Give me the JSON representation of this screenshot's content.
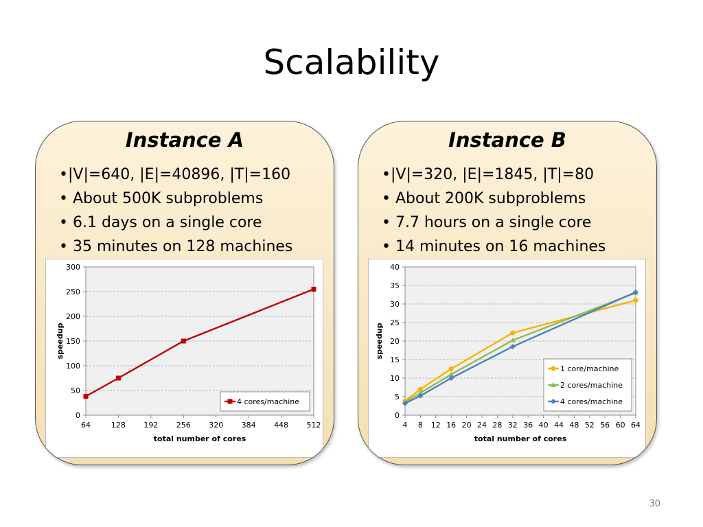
{
  "title": "Scalability",
  "page_number": "30",
  "panels": [
    {
      "title": "Instance A",
      "bullets": [
        "•|V|=640, |E|=40896, |T|=160",
        "• About 500K subproblems",
        "• 6.1 days on a single core",
        "• 35 minutes on 128 machines"
      ]
    },
    {
      "title": "Instance B",
      "bullets": [
        "•|V|=320, |E|=1845, |T|=80",
        "• About 200K subproblems",
        "• 7.7 hours on a single core",
        "• 14 minutes on 16 machines"
      ]
    }
  ],
  "chart_data": [
    {
      "type": "line",
      "xlabel": "total number of cores",
      "ylabel": "speedup",
      "xlim": [
        64,
        512
      ],
      "ylim": [
        0,
        300
      ],
      "x_ticks": [
        64,
        128,
        192,
        256,
        320,
        384,
        448,
        512
      ],
      "y_ticks": [
        0,
        50,
        100,
        150,
        200,
        250,
        300
      ],
      "grid": true,
      "legend_position": "bottom-right",
      "series": [
        {
          "name": "4 cores/machine",
          "color": "#c00000",
          "marker": "square",
          "x": [
            64,
            128,
            256,
            512
          ],
          "y": [
            38,
            75,
            150,
            255
          ]
        }
      ]
    },
    {
      "type": "line",
      "xlabel": "total number of cores",
      "ylabel": "speedup",
      "xlim": [
        4,
        64
      ],
      "ylim": [
        0,
        40
      ],
      "x_ticks": [
        4,
        8,
        12,
        16,
        20,
        24,
        28,
        32,
        36,
        40,
        44,
        48,
        52,
        56,
        60,
        64
      ],
      "y_ticks": [
        0,
        5,
        10,
        15,
        20,
        25,
        30,
        35,
        40
      ],
      "grid": true,
      "legend_position": "bottom-right",
      "series": [
        {
          "name": "1 core/machine",
          "color": "#f5b400",
          "marker": "circle",
          "x": [
            4,
            8,
            16,
            32,
            64
          ],
          "y": [
            3.8,
            7,
            12.5,
            22.2,
            31
          ]
        },
        {
          "name": "2 cores/machine",
          "color": "#8fbc5a",
          "marker": "triangle",
          "x": [
            4,
            8,
            16,
            32,
            64
          ],
          "y": [
            3.5,
            6,
            11,
            20.2,
            33
          ]
        },
        {
          "name": "4 cores/machine",
          "color": "#4f81bd",
          "marker": "diamond",
          "x": [
            4,
            8,
            16,
            32,
            64
          ],
          "y": [
            3.2,
            5.2,
            10,
            18.5,
            33.2
          ]
        }
      ]
    }
  ]
}
